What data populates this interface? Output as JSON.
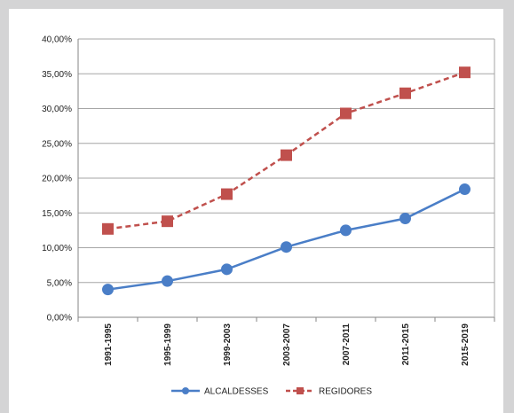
{
  "chart_data": {
    "type": "line",
    "title": "",
    "xlabel": "",
    "ylabel": "",
    "categories": [
      "1991-1995",
      "1995-1999",
      "1999-2003",
      "2003-2007",
      "2007-2011",
      "2011-2015",
      "2015-2019"
    ],
    "ylim": [
      0,
      40
    ],
    "yticks": [
      "0,00%",
      "5,00%",
      "10,00%",
      "15,00%",
      "20,00%",
      "25,00%",
      "30,00%",
      "35,00%",
      "40,00%"
    ],
    "grid": true,
    "legend_position": "bottom",
    "series": [
      {
        "name": "ALCALDESSES",
        "values": [
          4.0,
          5.2,
          6.9,
          10.1,
          12.5,
          14.2,
          18.4
        ],
        "color": "#4a7ec7",
        "marker": "circle",
        "line_style": "solid"
      },
      {
        "name": "REGIDORES",
        "values": [
          12.7,
          13.8,
          17.7,
          23.3,
          29.3,
          32.2,
          35.2
        ],
        "color": "#c0504d",
        "marker": "square",
        "line_style": "dashed"
      }
    ]
  }
}
